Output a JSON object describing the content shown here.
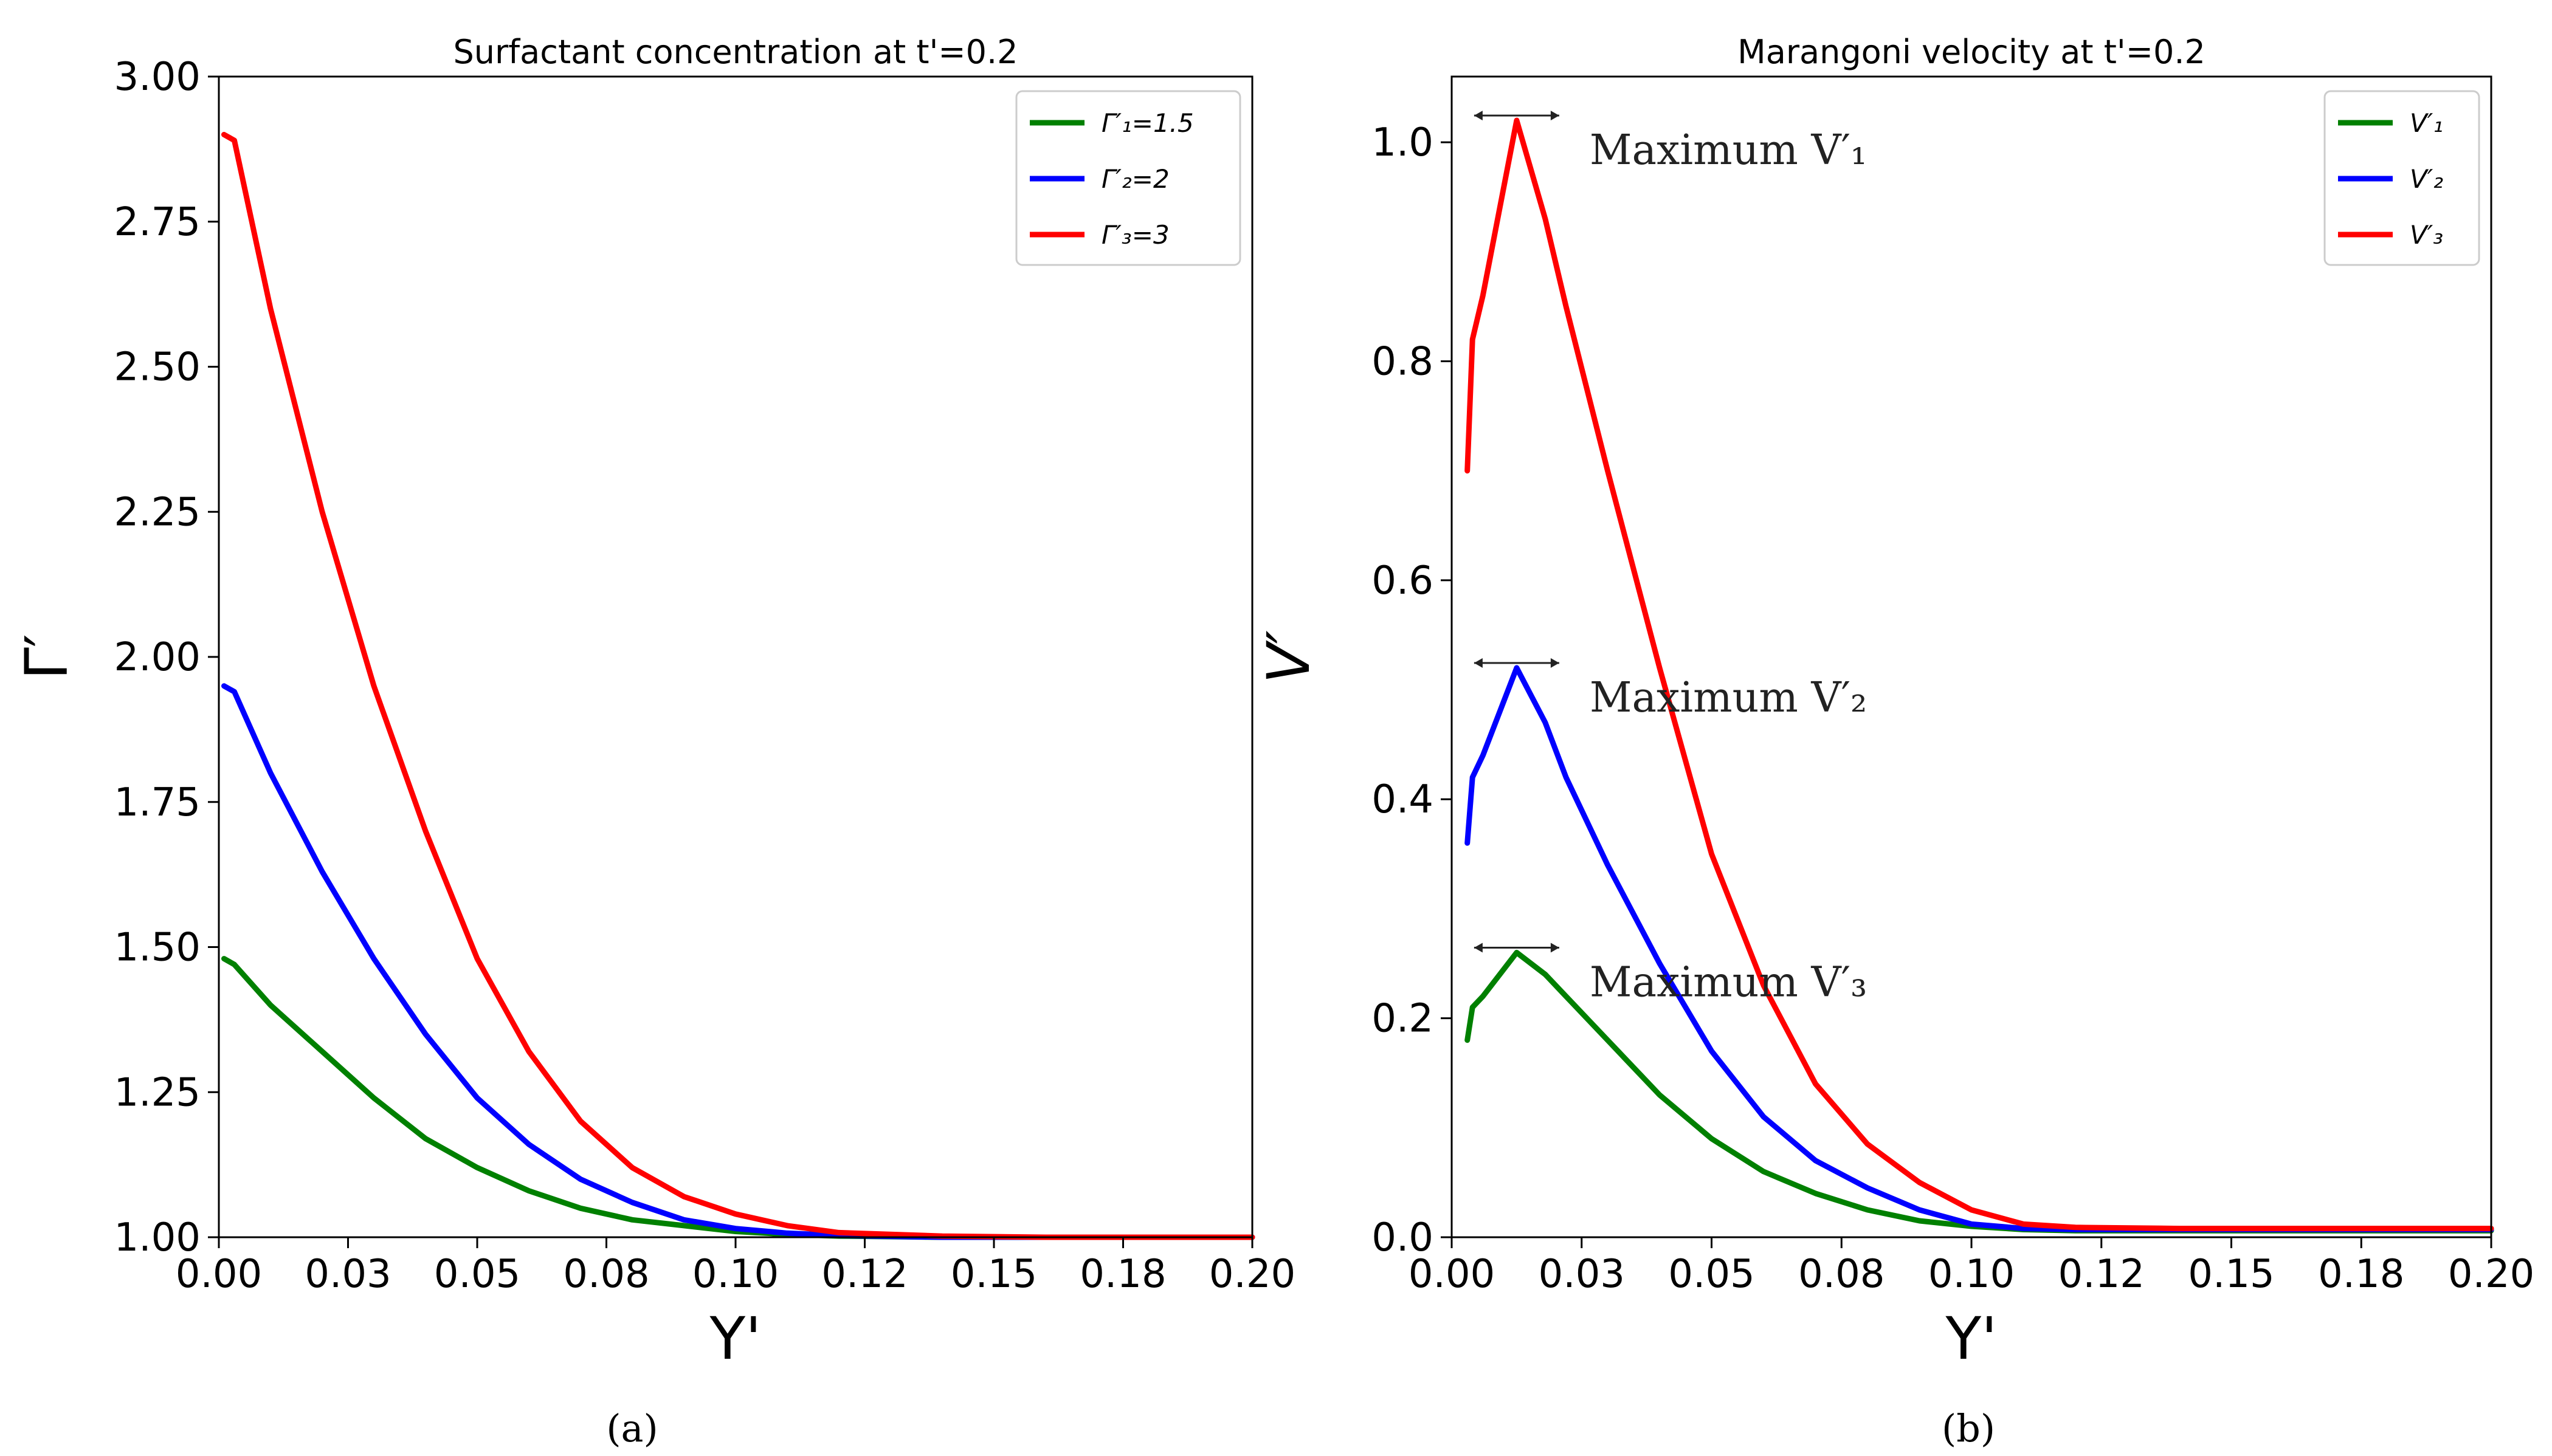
{
  "chart_data": [
    {
      "id": "a",
      "type": "line",
      "title": "Surfactant concentration at t'=0.2",
      "xlabel": "Y'",
      "ylabel": "Γ′",
      "xlim": [
        0.0,
        0.2
      ],
      "ylim": [
        1.0,
        3.0
      ],
      "xticks": [
        "0.00",
        "0.03",
        "0.05",
        "0.08",
        "0.10",
        "0.12",
        "0.15",
        "0.18",
        "0.20"
      ],
      "yticks": [
        "1.00",
        "1.25",
        "1.50",
        "1.75",
        "2.00",
        "2.25",
        "2.50",
        "2.75",
        "3.00"
      ],
      "legend_position": "top-right",
      "caption": "(a)",
      "series": [
        {
          "name": "Γ′₁=1.5",
          "color": "#008000",
          "x": [
            0.001,
            0.003,
            0.01,
            0.02,
            0.03,
            0.04,
            0.05,
            0.06,
            0.07,
            0.08,
            0.09,
            0.1,
            0.11,
            0.12,
            0.14,
            0.16,
            0.18,
            0.2
          ],
          "y": [
            1.48,
            1.47,
            1.4,
            1.32,
            1.24,
            1.17,
            1.12,
            1.08,
            1.05,
            1.03,
            1.02,
            1.01,
            1.005,
            1.002,
            1.0,
            1.0,
            1.0,
            1.0
          ]
        },
        {
          "name": "Γ′₂=2",
          "color": "#0000ff",
          "x": [
            0.001,
            0.003,
            0.01,
            0.02,
            0.03,
            0.04,
            0.05,
            0.06,
            0.07,
            0.08,
            0.09,
            0.1,
            0.11,
            0.12,
            0.14,
            0.16,
            0.18,
            0.2
          ],
          "y": [
            1.95,
            1.94,
            1.8,
            1.63,
            1.48,
            1.35,
            1.24,
            1.16,
            1.1,
            1.06,
            1.03,
            1.015,
            1.007,
            1.003,
            1.0,
            1.0,
            1.0,
            1.0
          ]
        },
        {
          "name": "Γ′₃=3",
          "color": "#ff0000",
          "x": [
            0.001,
            0.003,
            0.01,
            0.02,
            0.03,
            0.04,
            0.05,
            0.06,
            0.07,
            0.08,
            0.09,
            0.1,
            0.11,
            0.12,
            0.14,
            0.16,
            0.18,
            0.2
          ],
          "y": [
            2.9,
            2.89,
            2.6,
            2.25,
            1.95,
            1.7,
            1.48,
            1.32,
            1.2,
            1.12,
            1.07,
            1.04,
            1.02,
            1.008,
            1.002,
            1.0,
            1.0,
            1.0
          ]
        }
      ]
    },
    {
      "id": "b",
      "type": "line",
      "title": "Marangoni velocity at t'=0.2",
      "xlabel": "Y'",
      "ylabel": "V′",
      "xlim": [
        0.0,
        0.2
      ],
      "ylim": [
        0.0,
        1.06
      ],
      "xticks": [
        "0.00",
        "0.03",
        "0.05",
        "0.08",
        "0.10",
        "0.12",
        "0.15",
        "0.18",
        "0.20"
      ],
      "yticks": [
        "0.0",
        "0.2",
        "0.4",
        "0.6",
        "0.8",
        "1.0"
      ],
      "legend_position": "top-right",
      "caption": "(b)",
      "annotations": [
        {
          "text": "Maximum V′₁",
          "x": 0.0125,
          "y": 1.02
        },
        {
          "text": "Maximum V′₂",
          "x": 0.0125,
          "y": 0.52
        },
        {
          "text": "Maximum V′₃",
          "x": 0.0125,
          "y": 0.26
        }
      ],
      "series": [
        {
          "name": "V′₁",
          "color": "#008000",
          "x": [
            0.003,
            0.004,
            0.006,
            0.0125,
            0.018,
            0.022,
            0.03,
            0.04,
            0.05,
            0.06,
            0.07,
            0.08,
            0.09,
            0.1,
            0.11,
            0.12,
            0.14,
            0.16,
            0.18,
            0.2
          ],
          "y": [
            0.18,
            0.21,
            0.22,
            0.26,
            0.24,
            0.22,
            0.18,
            0.13,
            0.09,
            0.06,
            0.04,
            0.025,
            0.015,
            0.01,
            0.007,
            0.006,
            0.006,
            0.006,
            0.006,
            0.006
          ]
        },
        {
          "name": "V′₂",
          "color": "#0000ff",
          "x": [
            0.003,
            0.004,
            0.006,
            0.0125,
            0.018,
            0.022,
            0.03,
            0.04,
            0.05,
            0.06,
            0.07,
            0.08,
            0.09,
            0.1,
            0.11,
            0.12,
            0.14,
            0.16,
            0.18,
            0.2
          ],
          "y": [
            0.36,
            0.42,
            0.44,
            0.52,
            0.47,
            0.42,
            0.34,
            0.25,
            0.17,
            0.11,
            0.07,
            0.045,
            0.025,
            0.012,
            0.008,
            0.007,
            0.007,
            0.007,
            0.007,
            0.007
          ]
        },
        {
          "name": "V′₃",
          "color": "#ff0000",
          "x": [
            0.003,
            0.004,
            0.006,
            0.0125,
            0.018,
            0.022,
            0.03,
            0.04,
            0.05,
            0.06,
            0.07,
            0.08,
            0.09,
            0.1,
            0.11,
            0.12,
            0.14,
            0.16,
            0.18,
            0.2
          ],
          "y": [
            0.7,
            0.82,
            0.86,
            1.02,
            0.93,
            0.85,
            0.7,
            0.52,
            0.35,
            0.23,
            0.14,
            0.085,
            0.05,
            0.025,
            0.012,
            0.009,
            0.008,
            0.008,
            0.008,
            0.008
          ]
        }
      ]
    }
  ]
}
